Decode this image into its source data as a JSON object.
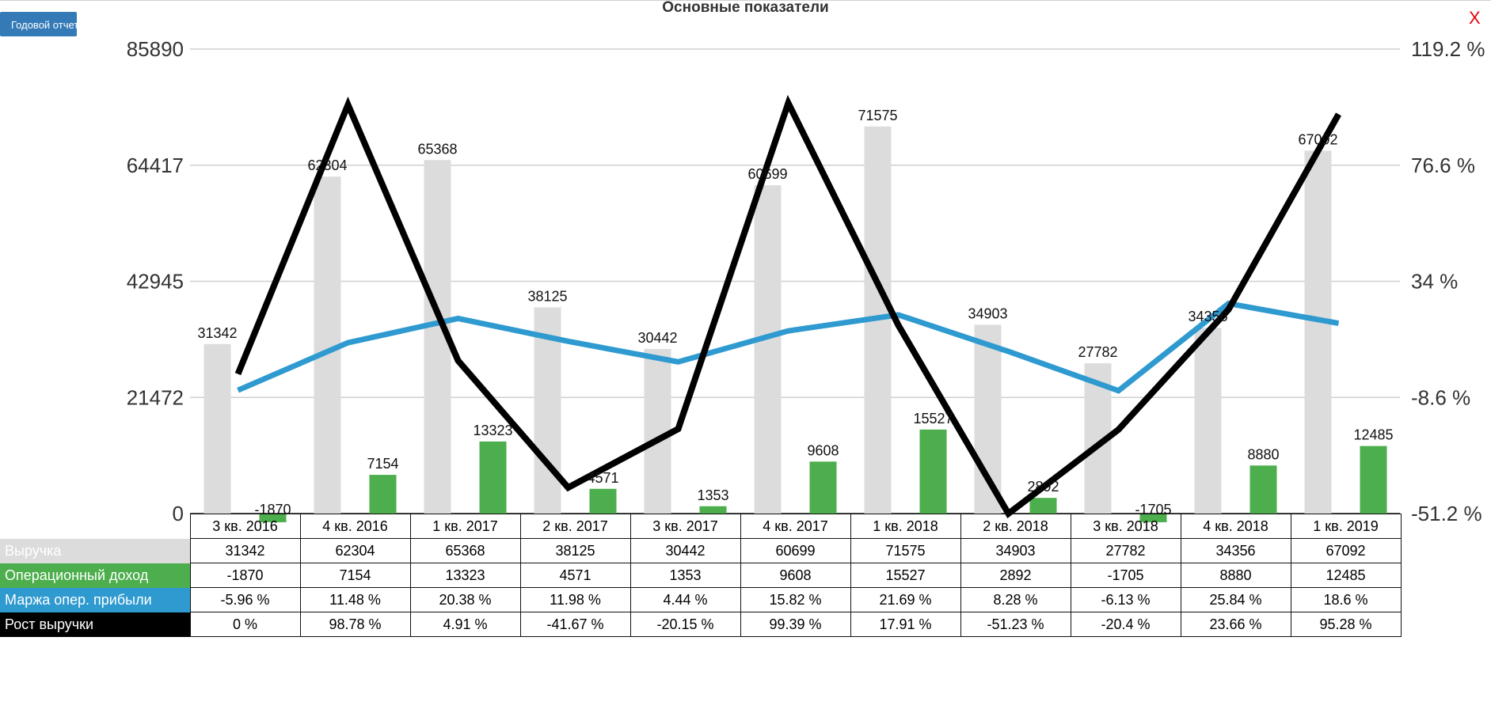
{
  "header": {
    "report_button": "Годовой отчет",
    "title": "Основные показатели",
    "close": "X"
  },
  "chart_data": {
    "type": "bar",
    "categories": [
      "3 кв. 2016",
      "4 кв. 2016",
      "1 кв. 2017",
      "2 кв. 2017",
      "3 кв. 2017",
      "4 кв. 2017",
      "1 кв. 2018",
      "2 кв. 2018",
      "3 кв. 2018",
      "4 кв. 2018",
      "1 кв. 2019"
    ],
    "y_left": {
      "ticks": [
        "0",
        "21472",
        "42945",
        "64417",
        "85890"
      ],
      "range": [
        0,
        85890
      ]
    },
    "y_right": {
      "ticks": [
        "-51.2 %",
        "-8.6 %",
        "34 %",
        "76.6 %",
        "119.2 %"
      ],
      "range": [
        -51.2,
        119.2
      ]
    },
    "grid": true,
    "series": [
      {
        "name": "Выручка",
        "kind": "bar",
        "axis": "left",
        "color": "#dcdcdc",
        "values": [
          31342,
          62304,
          65368,
          38125,
          30442,
          60699,
          71575,
          34903,
          27782,
          34356,
          67092
        ],
        "labels": [
          "31342",
          "62304",
          "65368",
          "38125",
          "30442",
          "60699",
          "71575",
          "34903",
          "27782",
          "34356",
          "67092"
        ]
      },
      {
        "name": "Операционный доход",
        "kind": "bar",
        "axis": "left",
        "color": "#4cae4c",
        "values": [
          -1870,
          7154,
          13323,
          4571,
          1353,
          9608,
          15527,
          2892,
          -1705,
          8880,
          12485
        ],
        "labels": [
          "-1870",
          "7154",
          "13323",
          "4571",
          "1353",
          "9608",
          "15527",
          "2892",
          "-1705",
          "8880",
          "12485"
        ]
      },
      {
        "name": "Маржа опер. прибыли",
        "kind": "line",
        "axis": "right",
        "color": "#2e9ad0",
        "values": [
          -5.96,
          11.48,
          20.38,
          11.98,
          4.44,
          15.82,
          21.69,
          8.28,
          -6.13,
          25.84,
          18.6
        ],
        "labels": [
          "-5.96 %",
          "11.48 %",
          "20.38 %",
          "11.98 %",
          "4.44 %",
          "15.82 %",
          "21.69 %",
          "8.28 %",
          "-6.13 %",
          "25.84 %",
          "18.6 %"
        ]
      },
      {
        "name": "Рост выручки",
        "kind": "line",
        "axis": "right",
        "color": "#000000",
        "values": [
          0,
          98.78,
          4.91,
          -41.67,
          -20.15,
          99.39,
          17.91,
          -51.23,
          -20.4,
          23.66,
          95.28
        ],
        "labels": [
          "0 %",
          "98.78 %",
          "4.91 %",
          "-41.67 %",
          "-20.15 %",
          "99.39 %",
          "17.91 %",
          "-51.23 %",
          "-20.4 %",
          "23.66 %",
          "95.28 %"
        ]
      }
    ]
  }
}
